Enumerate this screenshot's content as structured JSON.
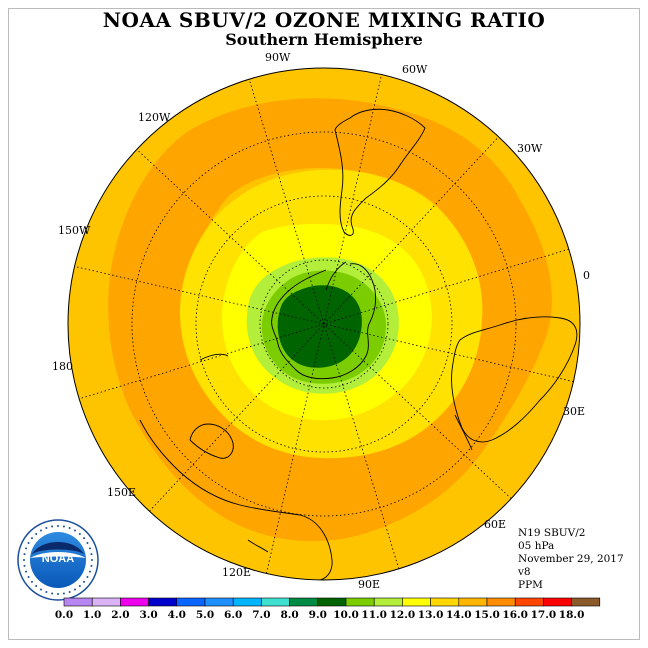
{
  "title": "NOAA SBUV/2 OZONE MIXING RATIO",
  "subtitle": "Southern Hemisphere",
  "longitude_labels": [
    "90W",
    "60W",
    "120W",
    "30W",
    "150W",
    "0",
    "180",
    "30E",
    "150E",
    "60E",
    "120E",
    "90E"
  ],
  "info": {
    "satellite": "N19 SBUV/2",
    "level": "05 hPa",
    "date": "November 29, 2017",
    "version": "v8",
    "units": "PPM"
  },
  "legend": {
    "ticks": [
      "0.0",
      "1.0",
      "2.0",
      "3.0",
      "4.0",
      "5.0",
      "6.0",
      "7.0",
      "8.0",
      "9.0",
      "10.0",
      "11.0",
      "12.0",
      "13.0",
      "14.0",
      "15.0",
      "16.0",
      "17.0",
      "18.0"
    ],
    "colors": [
      "#b786f0",
      "#d9b3f5",
      "#ee00ee",
      "#0000cd",
      "#0a64ff",
      "#1e90ff",
      "#00b4ff",
      "#40e0d0",
      "#008b45",
      "#006400",
      "#7ccd00",
      "#b3ee3a",
      "#ffff00",
      "#ffd700",
      "#ffb400",
      "#ff8c00",
      "#ff4500",
      "#ff0000",
      "#8b5a2b"
    ]
  },
  "colors": {
    "ring_15_16": "#ffa500",
    "ring_14_15": "#ffc400",
    "ring_13_14": "#ffe200",
    "ring_12_13": "#ffff00",
    "ring_11_12": "#b3ee3a",
    "ring_10_11": "#7ccd00",
    "core_9_10": "#006400"
  },
  "logo_text": "NOAA"
}
